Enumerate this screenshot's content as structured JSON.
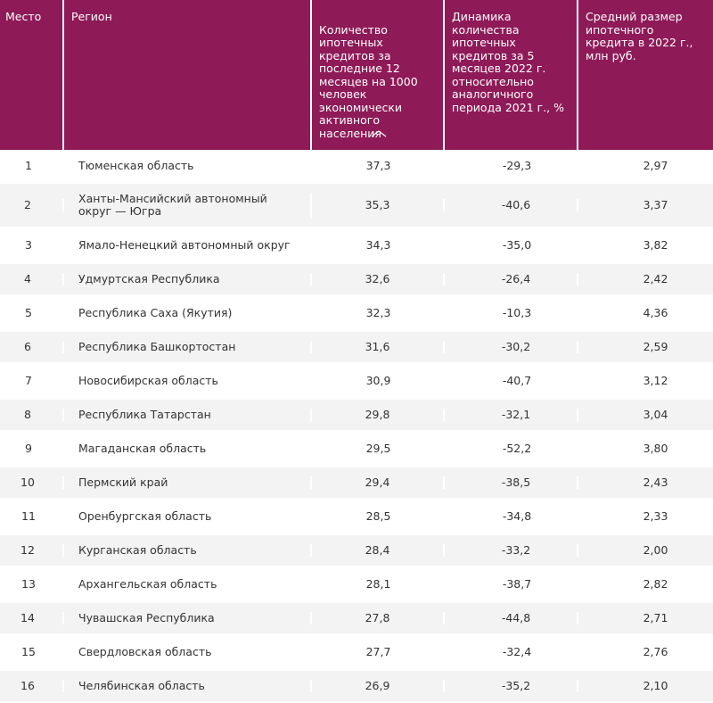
{
  "table": {
    "headers": [
      "Место",
      "Регион",
      "Количество\nипотечных\nкредитов за\nпоследние 12\nмесяцев на 1000\nчеловек\nэкономически\nактивного\nнаселения",
      "Динамика\nколичества\nипотечных\nкредитов за 5\nмесяцев 2022 г.\nотносительно\nаналогичного\nпериода 2021 г., %",
      "Средний размер\nипотечного\nкредита в 2022 г.,\nмлн руб."
    ],
    "sort_icon": "chevron-up-icon",
    "header_color": "#8e1a58",
    "rows": [
      [
        "1",
        "Тюменская область",
        "37,3",
        "-29,3",
        "2,97"
      ],
      [
        "2",
        "Ханты-Мансийский автономный округ — Югра",
        "35,3",
        "-40,6",
        "3,37"
      ],
      [
        "3",
        "Ямало-Ненецкий автономный округ",
        "34,3",
        "-35,0",
        "3,82"
      ],
      [
        "4",
        "Удмуртская Республика",
        "32,6",
        "-26,4",
        "2,42"
      ],
      [
        "5",
        "Республика Саха (Якутия)",
        "32,3",
        "-10,3",
        "4,36"
      ],
      [
        "6",
        "Республика Башкортостан",
        "31,6",
        "-30,2",
        "2,59"
      ],
      [
        "7",
        "Новосибирская область",
        "30,9",
        "-40,7",
        "3,12"
      ],
      [
        "8",
        "Республика Татарстан",
        "29,8",
        "-32,1",
        "3,04"
      ],
      [
        "9",
        "Магаданская область",
        "29,5",
        "-52,2",
        "3,80"
      ],
      [
        "10",
        "Пермский край",
        "29,4",
        "-38,5",
        "2,43"
      ],
      [
        "11",
        "Оренбургская область",
        "28,5",
        "-34,8",
        "2,33"
      ],
      [
        "12",
        "Курганская область",
        "28,4",
        "-33,2",
        "2,00"
      ],
      [
        "13",
        "Архангельская область",
        "28,1",
        "-38,7",
        "2,82"
      ],
      [
        "14",
        "Чувашская Республика",
        "27,8",
        "-44,8",
        "2,71"
      ],
      [
        "15",
        "Свердловская область",
        "27,7",
        "-32,4",
        "2,76"
      ],
      [
        "16",
        "Челябинская область",
        "26,9",
        "-35,2",
        "2,10"
      ]
    ]
  }
}
